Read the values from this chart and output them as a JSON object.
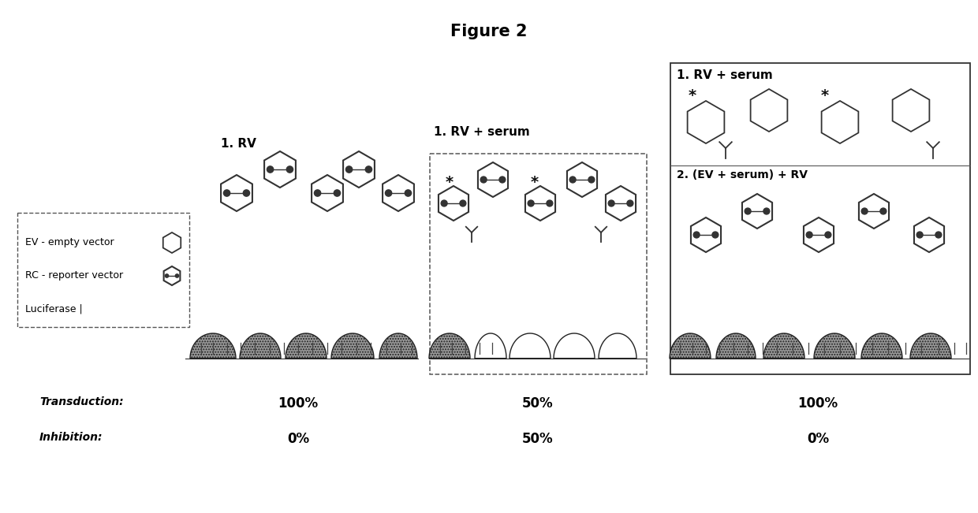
{
  "title": "Figure 2",
  "title_fontsize": 15,
  "title_fontweight": "bold",
  "background_color": "#ffffff",
  "panel1_label": "1. RV",
  "panel2_label": "1. RV + serum",
  "panel3a_label": "1. RV + serum",
  "panel3b_label": "2. (EV + serum) + RV",
  "transduction_label": "Transduction:",
  "inhibition_label": "Inhibition:",
  "panel1_transduction": "100%",
  "panel2_transduction": "50%",
  "panel3_transduction": "100%",
  "panel1_inhibition": "0%",
  "panel2_inhibition": "50%",
  "panel3_inhibition": "0%",
  "legend_line1": "EV - empty vector",
  "legend_line2": "RC - reporter vector",
  "legend_line3": "Luciferase |"
}
